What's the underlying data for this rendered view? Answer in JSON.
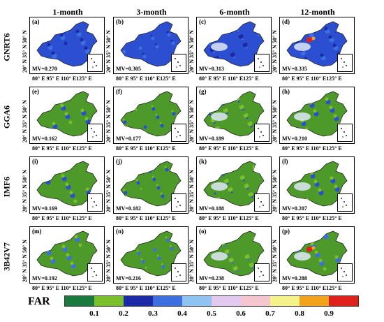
{
  "columns": [
    "1-month",
    "3-month",
    "6-month",
    "12-month"
  ],
  "rows": [
    {
      "label": "GNRT6",
      "panels": [
        {
          "id": "(a)",
          "mv": "MV=0.270"
        },
        {
          "id": "(b)",
          "mv": "MV=0.305"
        },
        {
          "id": "(c)",
          "mv": "MV=0.313"
        },
        {
          "id": "(d)",
          "mv": "MV=0.335"
        }
      ]
    },
    {
      "label": "GGA6",
      "panels": [
        {
          "id": "(e)",
          "mv": "MV=0.162"
        },
        {
          "id": "(f)",
          "mv": "MV=0.177"
        },
        {
          "id": "(g)",
          "mv": "MV=0.189"
        },
        {
          "id": "(h)",
          "mv": "MV=0.210"
        }
      ]
    },
    {
      "label": "IMF6",
      "panels": [
        {
          "id": "(i)",
          "mv": "MV=0.169"
        },
        {
          "id": "(j)",
          "mv": "MV=0.182"
        },
        {
          "id": "(k)",
          "mv": "MV=0.188"
        },
        {
          "id": "(l)",
          "mv": "MV=0.207"
        }
      ]
    },
    {
      "label": "3B42V7",
      "panels": [
        {
          "id": "(m)",
          "mv": "MV=0.192"
        },
        {
          "id": "(n)",
          "mv": "MV=0.216"
        },
        {
          "id": "(o)",
          "mv": "MV=0.238"
        },
        {
          "id": "(p)",
          "mv": "MV=0.288"
        }
      ]
    }
  ],
  "lat_ticks": "20° N 35° N 50° N",
  "lon_ticks": "80° E  95° E 110° E125° E",
  "legend": {
    "title": "FAR",
    "ticks": [
      "0.1",
      "0.2",
      "0.3",
      "0.4",
      "0.5",
      "0.6",
      "0.7",
      "0.8",
      "0.9"
    ],
    "colors": [
      "#1a7a3e",
      "#7cbf2c",
      "#1c2aa8",
      "#3d6fe0",
      "#8fc4f2",
      "#e3c8ef",
      "#f6c6cf",
      "#f6f28a",
      "#f3a21c",
      "#e0201b"
    ]
  },
  "map_palettes": {
    "row1": [
      "#2c4fd1",
      "#1b2aa3",
      "#3d6fe0"
    ],
    "row2": [
      "#4d9a2a",
      "#7cbf2c",
      "#2c4fd1"
    ],
    "row3": [
      "#4d9a2a",
      "#7cbf2c",
      "#2c4fd1"
    ],
    "row4": [
      "#4d9a2a",
      "#7cbf2c",
      "#3d6fe0"
    ]
  }
}
